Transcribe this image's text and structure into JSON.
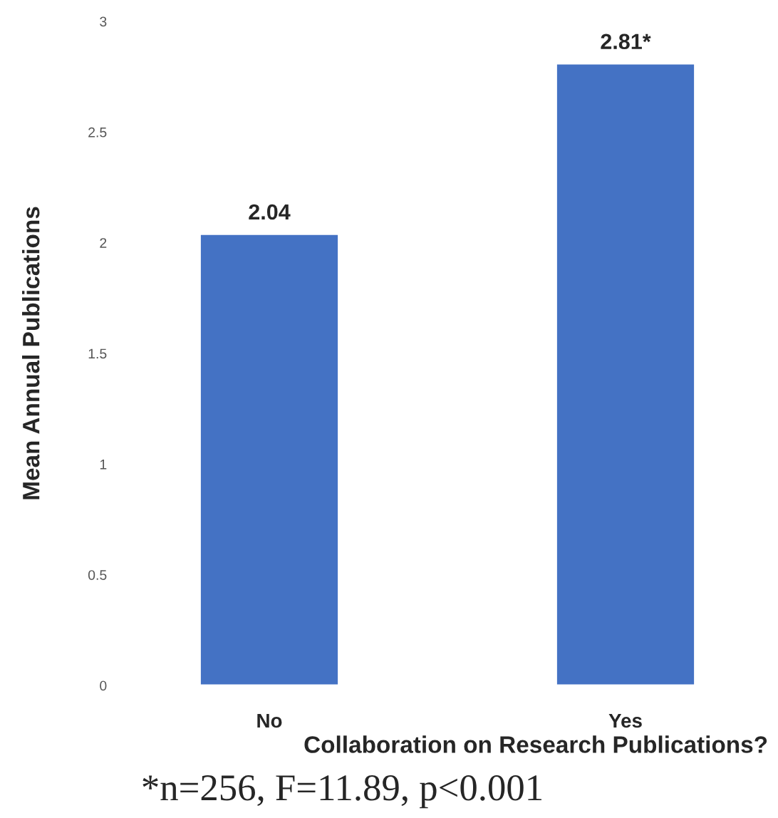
{
  "chart_data": {
    "type": "bar",
    "xlabel": "Collaboration on Research Publications?",
    "ylabel": "Mean Annual Publications",
    "categories": [
      "No",
      "Yes"
    ],
    "values": [
      2.04,
      2.81
    ],
    "color": "#4472c4",
    "value_labels": [
      "2.04",
      "2.81*"
    ],
    "ylim": [
      0,
      3
    ],
    "yticks": [
      0,
      0.5,
      1,
      1.5,
      2,
      2.5,
      3
    ],
    "grid": false,
    "legend": false,
    "annotations": [
      "*n=256, F=11.89, p<0.001"
    ]
  }
}
